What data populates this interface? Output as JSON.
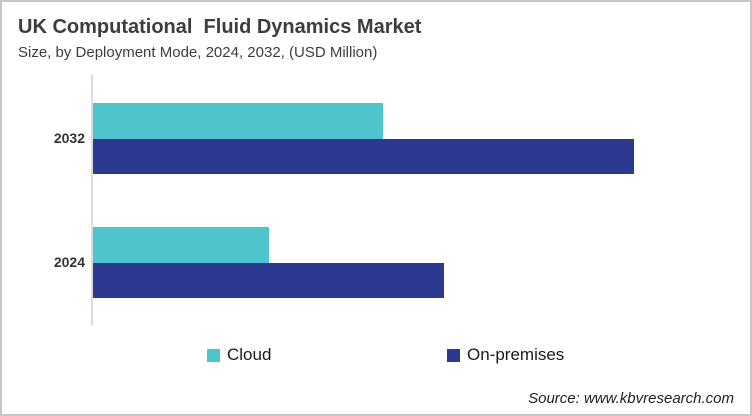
{
  "header": {
    "title": "UK Computational  Fluid Dynamics Market",
    "subtitle": "Size, by Deployment Mode, 2024, 2032, (USD Million)"
  },
  "chart_data": {
    "type": "bar",
    "orientation": "horizontal",
    "title": "UK Computational  Fluid Dynamics Market",
    "subtitle": "Size, by Deployment Mode, 2024, 2032, (USD Million)",
    "categories": [
      "2032",
      "2024"
    ],
    "series": [
      {
        "name": "Cloud",
        "color": "#4ec4cc",
        "values": [
          53.6,
          32.5
        ]
      },
      {
        "name": "On-premises",
        "color": "#2b3a90",
        "values": [
          100,
          64.9
        ]
      }
    ],
    "units": "relative bar length, % of longest bar (value axis not labeled in chart)",
    "value_axis_visible": false,
    "grid": false,
    "legend_position": "bottom",
    "axis_line_color": "#dcdcdc"
  },
  "legend": {
    "items": [
      {
        "label": "Cloud",
        "color": "#4ec4cc"
      },
      {
        "label": "On-premises",
        "color": "#2b3a90"
      }
    ]
  },
  "footer": {
    "source": "Source: www.kbvresearch.com"
  },
  "colors": {
    "cloud": "#4ec4cc",
    "on_premises": "#2b3a90",
    "frame_border": "#c6c6c6",
    "title_text": "#3d3d3d"
  }
}
